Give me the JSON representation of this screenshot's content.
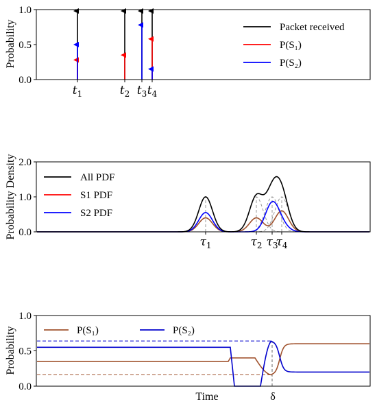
{
  "chart_data": [
    {
      "type": "line",
      "ylabel": "Probability",
      "ylim": [
        0,
        1.0
      ],
      "yticks": [
        "0.0",
        "0.5",
        "1.0"
      ],
      "x": [
        1,
        2,
        3,
        4
      ],
      "event_labels": [
        {
          "sym": "t",
          "sub": "1"
        },
        {
          "sym": "t",
          "sub": "2"
        },
        {
          "sym": "t",
          "sub": "3"
        },
        {
          "sym": "t",
          "sub": "4"
        }
      ],
      "series": [
        {
          "name": "Packet received",
          "color": "#000000",
          "values": [
            1.0,
            1.0,
            1.0,
            1.0
          ]
        },
        {
          "name": "P(S₁)",
          "color": "#ff0000",
          "values": [
            0.3,
            0.37,
            0.0,
            0.6
          ]
        },
        {
          "name": "P(S₂)",
          "color": "#0000ff",
          "values": [
            0.52,
            0.0,
            0.8,
            0.17
          ]
        }
      ],
      "legend_position": "upper-right"
    },
    {
      "type": "line",
      "ylabel": "Probability Density",
      "ylim": [
        0,
        2.0
      ],
      "yticks": [
        "0.0",
        "1.0",
        "2.0"
      ],
      "event_labels": [
        {
          "sym": "τ",
          "sub": "1"
        },
        {
          "sym": "τ",
          "sub": "2"
        },
        {
          "sym": "τ",
          "sub": "3"
        },
        {
          "sym": "τ",
          "sub": "4"
        }
      ],
      "x": [
        1,
        2,
        3,
        4
      ],
      "peaks": [
        {
          "all": 1.0,
          "s1": 0.4,
          "s2": 0.55
        },
        {
          "all": 1.0,
          "s1": 0.4,
          "s2": 0.0
        },
        {
          "all": 1.0,
          "s1": 0.0,
          "s2": 0.8
        },
        {
          "all": 1.0,
          "s1": 0.6,
          "s2": 0.17
        }
      ],
      "series": [
        {
          "name": "All PDF",
          "color": "#000000"
        },
        {
          "name": "S1 PDF",
          "color": "#ff0000"
        },
        {
          "name": "S2 PDF",
          "color": "#0000ff"
        }
      ],
      "legend_position": "upper-left"
    },
    {
      "type": "line",
      "ylabel": "Probability",
      "xlabel": "Time",
      "marker_label": "δ",
      "ylim": [
        0,
        1.0
      ],
      "yticks": [
        "0.0",
        "0.5",
        "1.0"
      ],
      "series": [
        {
          "name": "P(S₁)",
          "color": "#a0522d"
        },
        {
          "name": "P(S₂)",
          "color": "#0000cd"
        }
      ],
      "levels": {
        "s1_initial": 0.35,
        "s1_final": 0.6,
        "s2_initial": 0.55,
        "s2_final": 0.2,
        "s2_peak": 0.64,
        "s1_min": 0.16
      },
      "legend_position": "top"
    }
  ]
}
